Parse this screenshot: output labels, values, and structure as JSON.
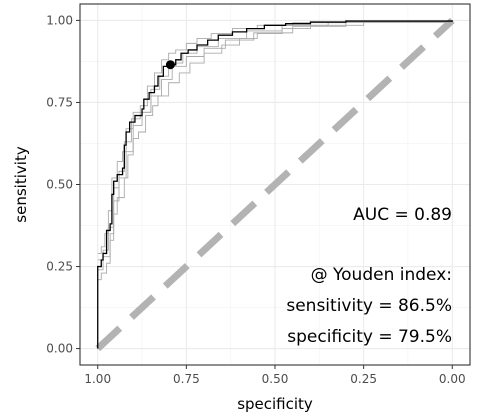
{
  "chart_data": {
    "type": "line",
    "xlabel": "specificity",
    "ylabel": "sensitivity",
    "x_reversed": true,
    "xlim": [
      1.0,
      0.0
    ],
    "ylim": [
      0.0,
      1.0
    ],
    "x_ticks": [
      "1.00",
      "0.75",
      "0.50",
      "0.25",
      "0.00"
    ],
    "y_ticks": [
      "0.00",
      "0.25",
      "0.50",
      "0.75",
      "1.00"
    ],
    "grid": true,
    "series": [
      {
        "role": "roc-curve",
        "color": "#000000",
        "points": [
          [
            1.0,
            0.0
          ],
          [
            1.0,
            0.25
          ],
          [
            0.99,
            0.27
          ],
          [
            0.985,
            0.29
          ],
          [
            0.975,
            0.31
          ],
          [
            0.975,
            0.36
          ],
          [
            0.965,
            0.38
          ],
          [
            0.96,
            0.47
          ],
          [
            0.955,
            0.51
          ],
          [
            0.945,
            0.53
          ],
          [
            0.93,
            0.55
          ],
          [
            0.925,
            0.62
          ],
          [
            0.92,
            0.66
          ],
          [
            0.91,
            0.69
          ],
          [
            0.895,
            0.71
          ],
          [
            0.875,
            0.73
          ],
          [
            0.87,
            0.76
          ],
          [
            0.855,
            0.78
          ],
          [
            0.84,
            0.8
          ],
          [
            0.83,
            0.83
          ],
          [
            0.815,
            0.86
          ],
          [
            0.795,
            0.865
          ],
          [
            0.78,
            0.88
          ],
          [
            0.765,
            0.9
          ],
          [
            0.745,
            0.91
          ],
          [
            0.72,
            0.925
          ],
          [
            0.69,
            0.94
          ],
          [
            0.66,
            0.955
          ],
          [
            0.62,
            0.965
          ],
          [
            0.58,
            0.975
          ],
          [
            0.53,
            0.985
          ],
          [
            0.47,
            0.99
          ],
          [
            0.4,
            0.995
          ],
          [
            0.3,
            0.998
          ],
          [
            0.0,
            1.0
          ]
        ]
      },
      {
        "role": "bootstrap-upper",
        "color": "#aaaaaa",
        "points": [
          [
            1.0,
            0.29
          ],
          [
            0.99,
            0.31
          ],
          [
            0.98,
            0.35
          ],
          [
            0.97,
            0.42
          ],
          [
            0.96,
            0.52
          ],
          [
            0.945,
            0.57
          ],
          [
            0.93,
            0.6
          ],
          [
            0.92,
            0.67
          ],
          [
            0.9,
            0.72
          ],
          [
            0.88,
            0.74
          ],
          [
            0.86,
            0.8
          ],
          [
            0.84,
            0.84
          ],
          [
            0.82,
            0.88
          ],
          [
            0.8,
            0.9
          ],
          [
            0.78,
            0.91
          ],
          [
            0.75,
            0.93
          ],
          [
            0.72,
            0.945
          ],
          [
            0.68,
            0.96
          ],
          [
            0.62,
            0.975
          ],
          [
            0.55,
            0.985
          ],
          [
            0.45,
            0.993
          ],
          [
            0.3,
            0.998
          ],
          [
            0.0,
            1.0
          ]
        ]
      },
      {
        "role": "bootstrap-lower",
        "color": "#aaaaaa",
        "points": [
          [
            1.0,
            0.21
          ],
          [
            0.99,
            0.23
          ],
          [
            0.975,
            0.26
          ],
          [
            0.965,
            0.33
          ],
          [
            0.955,
            0.41
          ],
          [
            0.945,
            0.46
          ],
          [
            0.925,
            0.52
          ],
          [
            0.915,
            0.59
          ],
          [
            0.9,
            0.64
          ],
          [
            0.885,
            0.66
          ],
          [
            0.865,
            0.71
          ],
          [
            0.845,
            0.74
          ],
          [
            0.83,
            0.77
          ],
          [
            0.8,
            0.81
          ],
          [
            0.77,
            0.84
          ],
          [
            0.74,
            0.87
          ],
          [
            0.7,
            0.9
          ],
          [
            0.65,
            0.925
          ],
          [
            0.6,
            0.945
          ],
          [
            0.55,
            0.96
          ],
          [
            0.48,
            0.975
          ],
          [
            0.4,
            0.985
          ],
          [
            0.25,
            0.995
          ],
          [
            0.0,
            1.0
          ]
        ]
      },
      {
        "role": "bootstrap-mid-1",
        "color": "#aaaaaa",
        "points": [
          [
            1.0,
            0.27
          ],
          [
            0.985,
            0.3
          ],
          [
            0.97,
            0.37
          ],
          [
            0.955,
            0.49
          ],
          [
            0.94,
            0.54
          ],
          [
            0.925,
            0.63
          ],
          [
            0.905,
            0.7
          ],
          [
            0.88,
            0.72
          ],
          [
            0.85,
            0.79
          ],
          [
            0.825,
            0.83
          ],
          [
            0.8,
            0.87
          ],
          [
            0.76,
            0.9
          ],
          [
            0.72,
            0.92
          ],
          [
            0.66,
            0.945
          ],
          [
            0.58,
            0.968
          ],
          [
            0.48,
            0.985
          ],
          [
            0.35,
            0.995
          ],
          [
            0.0,
            1.0
          ]
        ]
      },
      {
        "role": "bootstrap-mid-2",
        "color": "#aaaaaa",
        "points": [
          [
            1.0,
            0.24
          ],
          [
            0.985,
            0.28
          ],
          [
            0.965,
            0.35
          ],
          [
            0.955,
            0.45
          ],
          [
            0.94,
            0.52
          ],
          [
            0.92,
            0.6
          ],
          [
            0.9,
            0.68
          ],
          [
            0.875,
            0.72
          ],
          [
            0.85,
            0.77
          ],
          [
            0.82,
            0.82
          ],
          [
            0.79,
            0.86
          ],
          [
            0.75,
            0.89
          ],
          [
            0.7,
            0.915
          ],
          [
            0.64,
            0.94
          ],
          [
            0.56,
            0.962
          ],
          [
            0.45,
            0.982
          ],
          [
            0.3,
            0.994
          ],
          [
            0.0,
            1.0
          ]
        ]
      }
    ],
    "reference_line": {
      "from": [
        1.0,
        0.0
      ],
      "to": [
        0.0,
        1.0
      ],
      "color": "#b3b3b3",
      "style": "dashed"
    },
    "youden_point": {
      "x": 0.795,
      "y": 0.865,
      "color": "#000000"
    },
    "annotations": {
      "auc": "AUC = 0.89",
      "youden_title": "@ Youden index:",
      "youden_sensitivity": "sensitivity = 86.5%",
      "youden_specificity": "specificity = 79.5%"
    },
    "colors": {
      "panel_border": "#333333",
      "grid_major": "#ebebeb",
      "grid_minor": "#f5f5f5",
      "tick_label": "#4d4d4d"
    }
  }
}
